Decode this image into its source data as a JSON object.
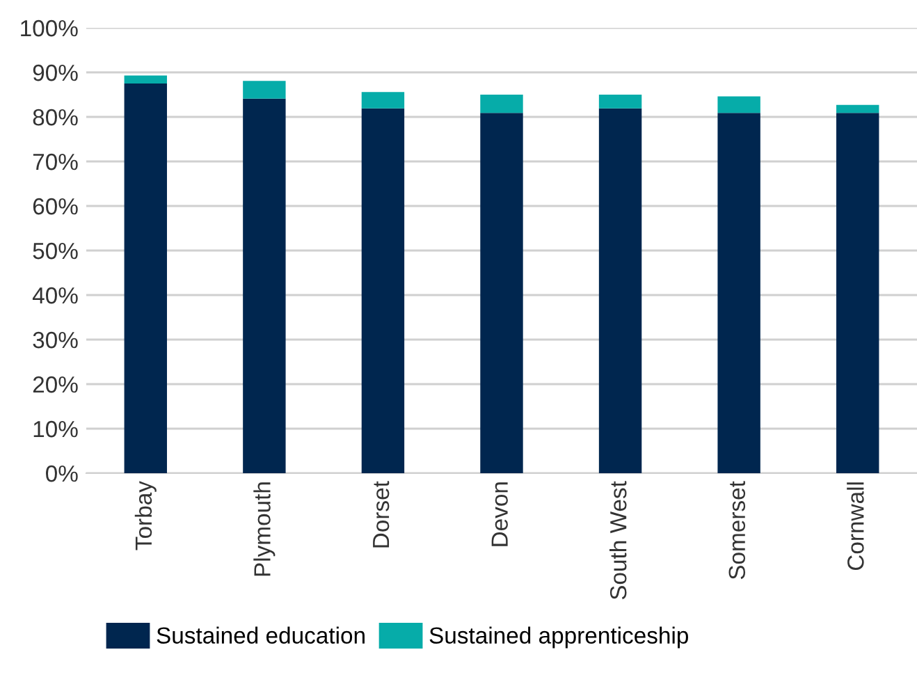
{
  "chart_data": {
    "type": "bar",
    "stacked": true,
    "categories": [
      "Torbay",
      "Plymouth",
      "Dorset",
      "Devon",
      "South West",
      "Somerset",
      "Cornwall"
    ],
    "series": [
      {
        "name": "Sustained education",
        "color": "#00264f",
        "values": [
          87.5,
          84.1,
          81.9,
          80.9,
          81.9,
          80.9,
          80.9
        ]
      },
      {
        "name": "Sustained apprenticeship",
        "color": "#06aca9",
        "values": [
          1.8,
          4.0,
          3.7,
          4.1,
          3.1,
          3.7,
          1.8
        ]
      }
    ],
    "ylim": [
      0,
      100
    ],
    "yticks": [
      {
        "value": 0,
        "label": "0%"
      },
      {
        "value": 10,
        "label": "10%"
      },
      {
        "value": 20,
        "label": "20%"
      },
      {
        "value": 30,
        "label": "30%"
      },
      {
        "value": 40,
        "label": "40%"
      },
      {
        "value": 50,
        "label": "50%"
      },
      {
        "value": 60,
        "label": "60%"
      },
      {
        "value": 70,
        "label": "70%"
      },
      {
        "value": 80,
        "label": "80%"
      },
      {
        "value": 90,
        "label": "90%"
      },
      {
        "value": 100,
        "label": "100%"
      }
    ],
    "grid": "y",
    "legend": "bottom"
  }
}
